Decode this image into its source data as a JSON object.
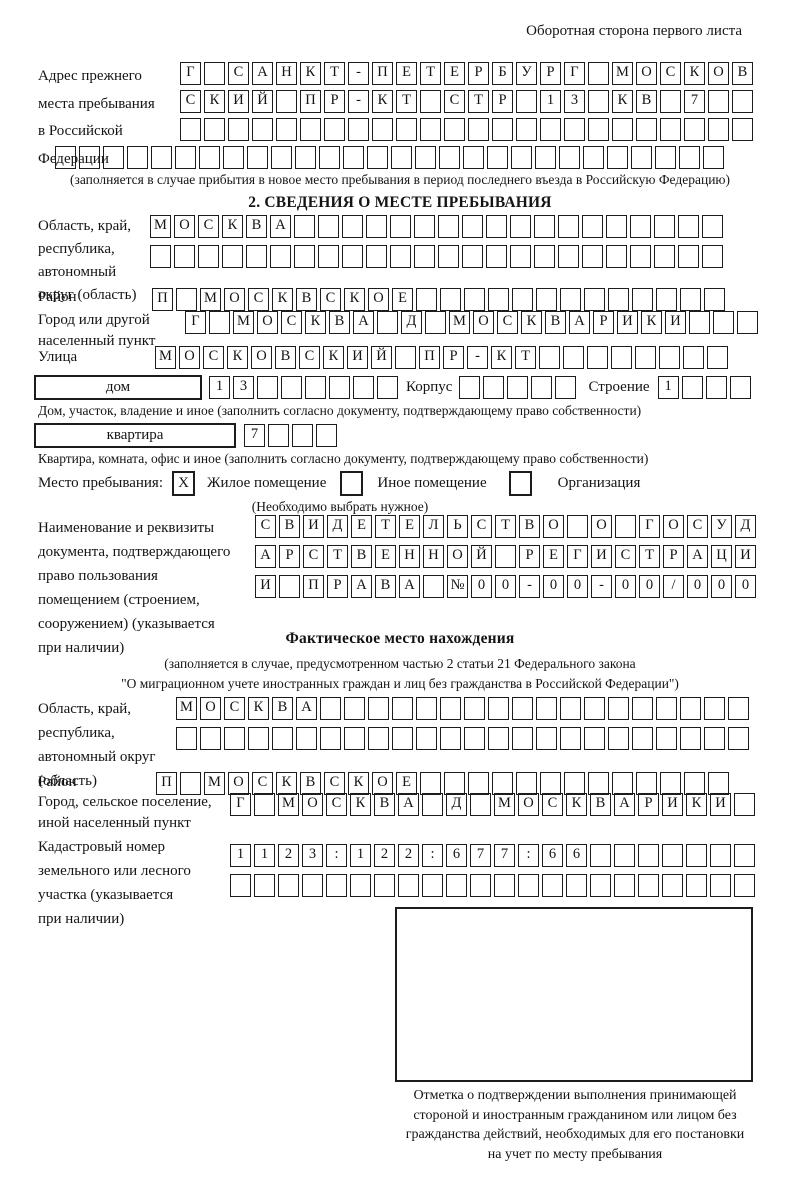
{
  "page_note": "Оборотная сторона первого листа",
  "prev_address": {
    "label": "Адрес прежнего\nместа пребывания\nв Российской\nФедерации",
    "row1": {
      "text": "Г САНКТ-ПЕТЕРБУРГ МОСКОВ",
      "len": 24
    },
    "row2": {
      "text": "СКИЙ ПР-КТ СТР 13 КВ 7",
      "len": 24
    },
    "row3": {
      "text": "",
      "len": 24
    },
    "row4": {
      "text": "",
      "len": 28
    },
    "note": "(заполняется в случае прибытия в новое место пребывания в период последнего въезда в Российскую Федерацию)"
  },
  "section2": {
    "title": "2. СВЕДЕНИЯ О МЕСТЕ ПРЕБЫВАНИЯ",
    "region": {
      "label": "Область, край,\nреспублика,\nавтономный\nокруг (область)",
      "row1": {
        "text": "МОСКВА",
        "len": 24
      },
      "row2": {
        "text": "",
        "len": 24
      }
    },
    "district": {
      "label": "Район",
      "row": {
        "text": "П МОСКВСКОЕ",
        "len": 24
      }
    },
    "city": {
      "label": "Город или другой\nнаселенный пункт",
      "row": {
        "text": "Г МОСКВА Д МОСКВАРИКИ",
        "len": 24
      }
    },
    "street": {
      "label": "Улица",
      "row": {
        "text": "МОСКОВСКИЙ ПР-КТ",
        "len": 24
      }
    },
    "house": {
      "box_label": "дом",
      "cells": {
        "text": "13",
        "len": 8
      },
      "korpus_label": "Корпус",
      "korpus_cells": {
        "text": "",
        "len": 5
      },
      "stroenie_label": "Строение",
      "stroenie_cells": {
        "text": "1",
        "len": 4
      },
      "note": "Дом, участок, владение и иное (заполнить согласно документу, подтверждающему право собственности)"
    },
    "apartment": {
      "box_label": "квартира",
      "cells": {
        "text": "7",
        "len": 4
      },
      "note": "Квартира, комната, офис и иное (заполнить согласно документу, подтверждающему право собственности)"
    },
    "stay_type": {
      "label": "Место пребывания:",
      "option1": {
        "mark": "X",
        "label": "Жилое помещение"
      },
      "option2": {
        "mark": "",
        "label": "Иное помещение"
      },
      "option3": {
        "mark": "",
        "label": "Организация"
      },
      "note": "(Необходимо выбрать нужное)"
    },
    "document": {
      "label": "Наименование и реквизиты\nдокумента, подтверждающего\nправо пользования\nпомещением (строением,\nсооружением) (указывается\nпри наличии)",
      "row1": {
        "text": "СВИДЕТЕЛЬСТВО О ГОСУД",
        "len": 21
      },
      "row2": {
        "text": "АРСТВЕННОЙ РЕГИСТРАЦИ",
        "len": 21
      },
      "row3": {
        "text": "И ПРАВА №00-00-00/000",
        "len": 21
      }
    }
  },
  "actual_location": {
    "title": "Фактическое место нахождения",
    "note1": "(заполняется в случае, предусмотренном частью 2 статьи 21 Федерального закона",
    "note2": "\"О миграционном учете иностранных граждан и лиц без гражданства в Российской Федерации\")",
    "region": {
      "label": "Область, край,\nреспублика,\nавтономный округ\n(область)",
      "row1": {
        "text": "МОСКВА",
        "len": 24
      },
      "row2": {
        "text": "",
        "len": 24
      }
    },
    "district": {
      "label": "Район",
      "row": {
        "text": "П МОСКВСКОЕ",
        "len": 24
      }
    },
    "city": {
      "label": "Город, сельское поселение,\nиной населенный пункт",
      "row": {
        "text": "Г МОСКВА Д МОСКВАРИКИ",
        "len": 22
      }
    },
    "cadastral": {
      "label": "Кадастровый номер\nземельного или лесного\nучастка (указывается\nпри наличии)",
      "row1": {
        "text": "1123:122:677:66",
        "len": 22
      },
      "row2": {
        "text": "",
        "len": 22
      }
    },
    "stamp_caption": "Отметка о подтверждении выполнения принимающей\nстороной и иностранным гражданином или лицом без\nгражданства действий, необходимых для его постановки\nна учет по месту пребывания"
  }
}
